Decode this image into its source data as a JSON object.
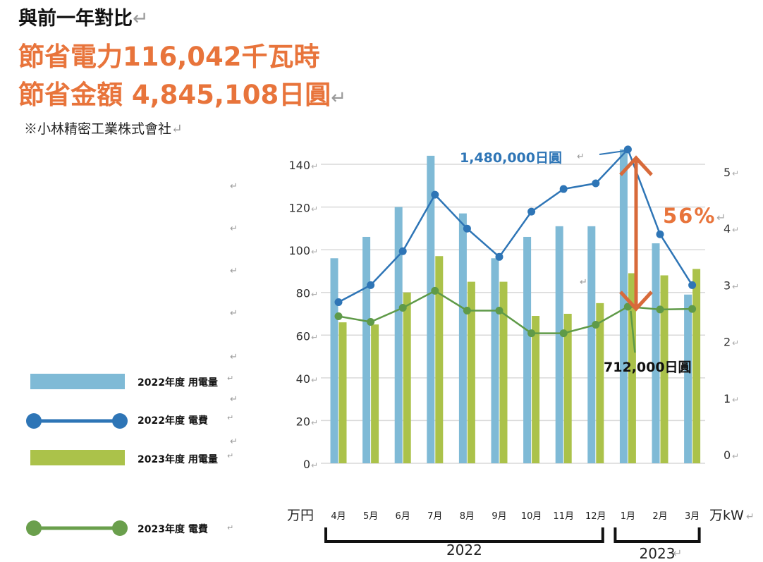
{
  "header": {
    "title": "與前一年對比",
    "power_saving": "節省電力116,042千瓦時",
    "cost_saving": "節省金額 4,845,108日圓",
    "company": "※小林精密工業株式會社",
    "return_mark": "↵"
  },
  "colors": {
    "bar_2022": "#7fbad6",
    "bar_2023": "#abc24a",
    "line_2022": "#2e75b6",
    "line_2023": "#5f9a48",
    "accent_orange": "#e8743b",
    "arrow": "#d86a3a"
  },
  "chart_data": {
    "type": "bar",
    "categories": [
      "4月",
      "5月",
      "6月",
      "7月",
      "8月",
      "9月",
      "10月",
      "11月",
      "12月",
      "1月",
      "2月",
      "3月"
    ],
    "series": [
      {
        "name": "2022年度 用電量",
        "type": "bar",
        "axis": "left",
        "values": [
          96,
          106,
          120,
          144,
          117,
          96,
          106,
          111,
          111,
          147,
          103,
          79
        ]
      },
      {
        "name": "2023年度 用電量",
        "type": "bar",
        "axis": "left",
        "values": [
          66,
          65,
          80,
          97,
          85,
          85,
          69,
          70,
          75,
          89,
          88,
          91
        ]
      },
      {
        "name": "2022年度 電費",
        "type": "line",
        "axis": "right",
        "values": [
          2.7,
          3.0,
          3.6,
          4.6,
          4.0,
          3.5,
          4.3,
          4.7,
          4.8,
          5.4,
          3.9,
          3.0
        ]
      },
      {
        "name": "2023年度 電費",
        "type": "line",
        "axis": "right",
        "values": [
          2.45,
          2.35,
          2.6,
          2.9,
          2.55,
          2.55,
          2.15,
          2.15,
          2.3,
          2.62,
          2.57,
          2.58
        ]
      }
    ],
    "left_axis": {
      "label": "万円",
      "ticks": [
        0,
        20,
        40,
        60,
        80,
        100,
        120,
        140
      ],
      "range": [
        0,
        150
      ]
    },
    "right_axis": {
      "label": "万kW",
      "ticks": [
        0,
        1,
        2,
        3,
        4,
        5
      ],
      "range": [
        0,
        5.5
      ]
    },
    "grid": true,
    "legend_placement": "left",
    "year_groups": [
      {
        "label": "2022",
        "from": 0,
        "to": 8
      },
      {
        "label": "2023",
        "from": 9,
        "to": 11
      }
    ],
    "annotations": {
      "peak_2022": "1,480,000日圓",
      "peak_2023": "712,000日圓",
      "reduction": "56%"
    }
  }
}
